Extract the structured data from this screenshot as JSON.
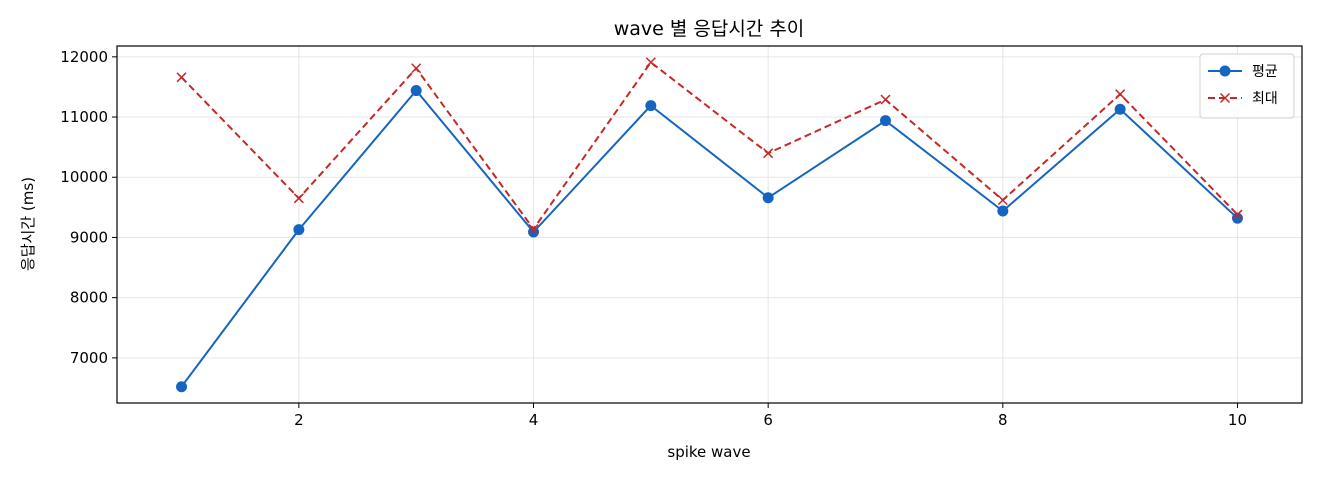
{
  "chart_data": {
    "type": "line",
    "title": "wave 별 응답시간 추이",
    "xlabel": "spike wave",
    "ylabel": "응답시간 (ms)",
    "xlim": [
      0.45,
      10.55
    ],
    "ylim": [
      6250,
      12180
    ],
    "xticks": [
      2,
      4,
      6,
      8,
      10
    ],
    "yticks": [
      7000,
      8000,
      9000,
      10000,
      11000,
      12000
    ],
    "grid": true,
    "legend_position": "top-right",
    "x": [
      1,
      2,
      3,
      4,
      5,
      6,
      7,
      8,
      9,
      10
    ],
    "series": [
      {
        "name": "평균",
        "color": "#1565C0",
        "line_style": "solid",
        "marker": "circle",
        "values": [
          6520,
          9130,
          11440,
          9090,
          11190,
          9660,
          10940,
          9440,
          11130,
          9320
        ]
      },
      {
        "name": "최대",
        "color": "#C62828",
        "line_style": "dashed",
        "marker": "x",
        "values": [
          11660,
          9650,
          11810,
          9140,
          11910,
          10400,
          11290,
          9620,
          11380,
          9380
        ]
      }
    ]
  }
}
